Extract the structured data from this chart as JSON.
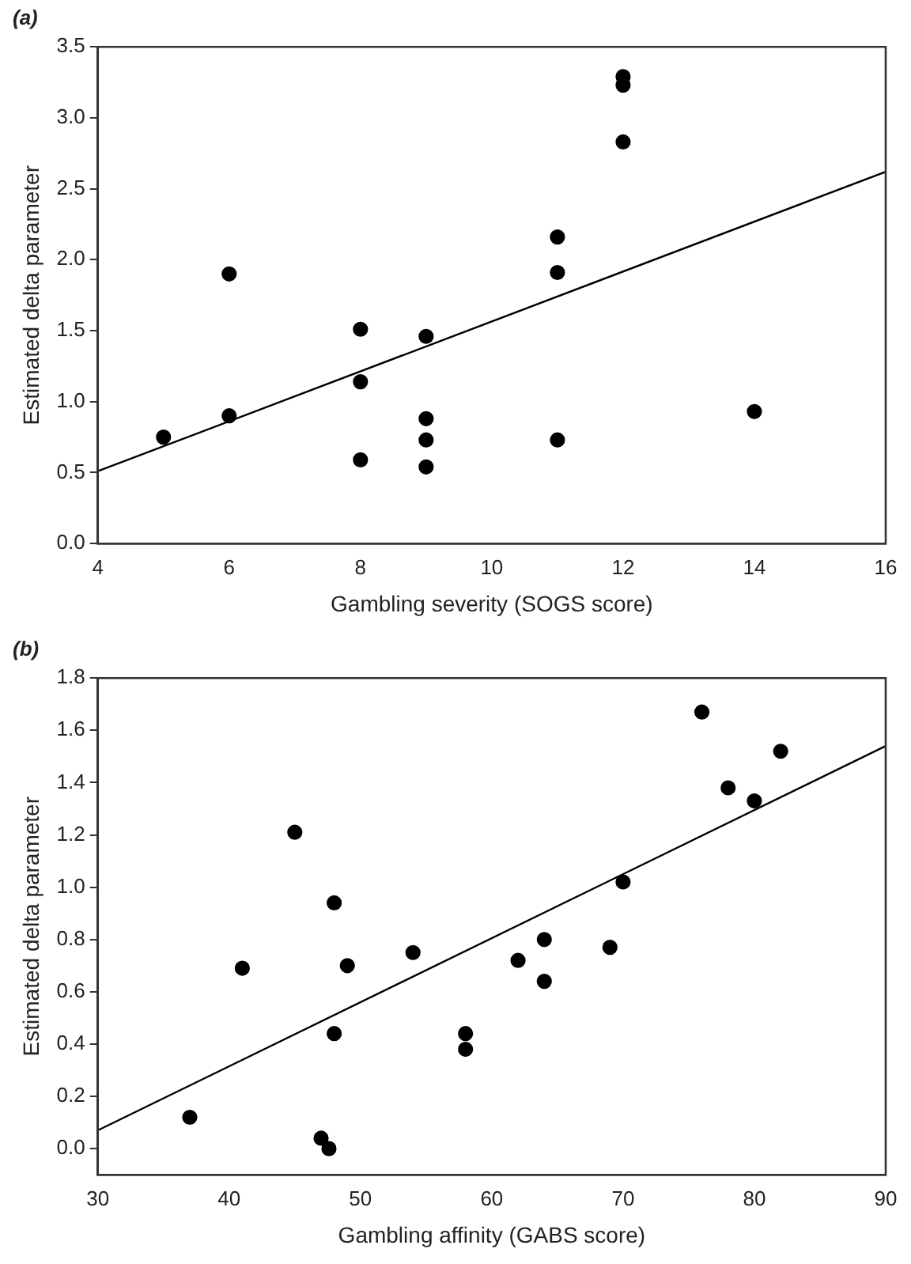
{
  "chart_data": [
    {
      "type": "scatter",
      "title": "(a)",
      "xlabel": "Gambling severity (SOGS score)",
      "ylabel": "Estimated delta parameter",
      "xlim": [
        4,
        16
      ],
      "xticks": [
        4,
        6,
        8,
        10,
        12,
        14,
        16
      ],
      "ylim": [
        0,
        3.5
      ],
      "yticks": [
        {
          "value": 0,
          "label": "0.0"
        },
        {
          "value": 0.5,
          "label": "0.5"
        },
        {
          "value": 1,
          "label": "1.0"
        },
        {
          "value": 1.5,
          "label": "1.5"
        },
        {
          "value": 2,
          "label": "2.0"
        },
        {
          "value": 2.5,
          "label": "2.5"
        },
        {
          "value": 3,
          "label": "3.0"
        },
        {
          "value": 3.5,
          "label": "3.5"
        }
      ],
      "grid": false,
      "legend": false,
      "series": [
        {
          "marker": "circle",
          "color": "#000000",
          "x": [
            5,
            6,
            6,
            8,
            8,
            8,
            9,
            9,
            9,
            9,
            11,
            11,
            11,
            12,
            12,
            12,
            14
          ],
          "values": [
            0.75,
            1.9,
            0.9,
            1.51,
            1.14,
            0.59,
            1.46,
            0.88,
            0.73,
            0.54,
            2.16,
            1.91,
            0.73,
            3.29,
            3.23,
            2.83,
            0.93
          ]
        },
        {
          "type": "line",
          "marker": "none",
          "color": "#000000",
          "x": [
            4,
            16
          ],
          "values": [
            0.51,
            2.62
          ]
        }
      ]
    },
    {
      "type": "scatter",
      "title": "(b)",
      "xlabel": "Gambling affinity (GABS score)",
      "ylabel": "Estimated delta parameter",
      "xlim": [
        30,
        90
      ],
      "xticks": [
        30,
        40,
        50,
        60,
        70,
        80,
        90
      ],
      "ylim": [
        -0.1,
        1.8
      ],
      "yticks": [
        {
          "value": 0,
          "label": "0.0"
        },
        {
          "value": 0.2,
          "label": "0.2"
        },
        {
          "value": 0.4,
          "label": "0.4"
        },
        {
          "value": 0.6,
          "label": "0.6"
        },
        {
          "value": 0.8,
          "label": "0.8"
        },
        {
          "value": 1,
          "label": "1.0"
        },
        {
          "value": 1.2,
          "label": "1.2"
        },
        {
          "value": 1.4,
          "label": "1.4"
        },
        {
          "value": 1.6,
          "label": "1.6"
        },
        {
          "value": 1.8,
          "label": "1.8"
        }
      ],
      "grid": false,
      "legend": false,
      "series": [
        {
          "marker": "circle",
          "color": "#000000",
          "x": [
            37,
            41,
            45,
            47,
            47.6,
            48,
            48,
            49,
            54,
            58,
            58,
            62,
            64,
            64,
            69,
            70,
            76,
            78,
            80,
            82
          ],
          "values": [
            0.12,
            0.69,
            1.21,
            0.04,
            0,
            0.94,
            0.44,
            0.7,
            0.75,
            0.44,
            0.38,
            0.72,
            0.8,
            0.64,
            0.77,
            1.02,
            1.67,
            1.38,
            1.33,
            1.52
          ]
        },
        {
          "type": "line",
          "marker": "none",
          "color": "#000000",
          "x": [
            30,
            90
          ],
          "values": [
            0.07,
            1.54
          ]
        }
      ]
    }
  ]
}
